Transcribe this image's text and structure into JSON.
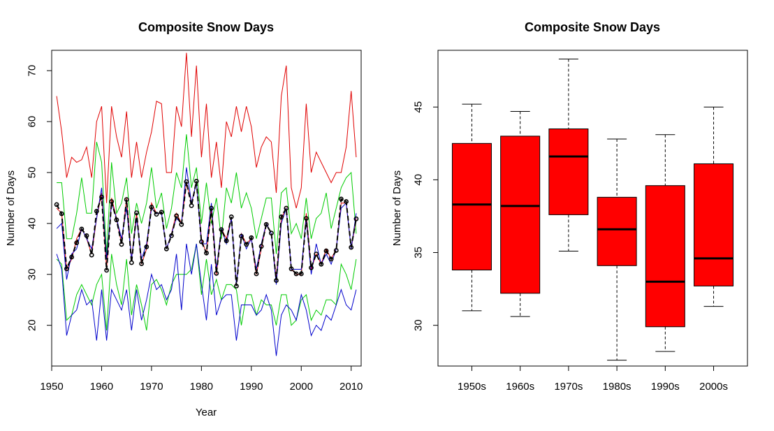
{
  "chart_data": [
    {
      "type": "line",
      "title": "Composite Snow Days",
      "xlabel": "Year",
      "ylabel": "Number of Days",
      "xlim": [
        1950,
        2012
      ],
      "ylim": [
        12,
        74
      ],
      "xticks": [
        "1950",
        "1960",
        "1970",
        "1980",
        "1990",
        "2000",
        "2010"
      ],
      "yticks": [
        "20",
        "30",
        "40",
        "50",
        "60",
        "70"
      ],
      "x": [
        1951,
        1952,
        1953,
        1954,
        1955,
        1956,
        1957,
        1958,
        1959,
        1960,
        1961,
        1962,
        1963,
        1964,
        1965,
        1966,
        1967,
        1968,
        1969,
        1970,
        1971,
        1972,
        1973,
        1974,
        1975,
        1976,
        1977,
        1978,
        1979,
        1980,
        1981,
        1982,
        1983,
        1984,
        1985,
        1986,
        1987,
        1988,
        1989,
        1990,
        1991,
        1992,
        1993,
        1994,
        1995,
        1996,
        1997,
        1998,
        1999,
        2000,
        2001,
        2002,
        2003,
        2004,
        2005,
        2006,
        2007,
        2008,
        2009,
        2010,
        2011
      ],
      "series": [
        {
          "color": "#e00000",
          "values": [
            65,
            58,
            49,
            53,
            52,
            52.5,
            55,
            49,
            60,
            63,
            44,
            63,
            57,
            53,
            62,
            49,
            56,
            49,
            54,
            58,
            64,
            63.5,
            50,
            50,
            63,
            59,
            73.5,
            57,
            71,
            53,
            63.5,
            49,
            56,
            47,
            60,
            57,
            63,
            58,
            63,
            59,
            51,
            55,
            57,
            56,
            46,
            65,
            71,
            47,
            43,
            47,
            63.5,
            50,
            54,
            52,
            50,
            48,
            50,
            50,
            55,
            66,
            53
          ]
        },
        {
          "color": "#00cc00",
          "values": [
            48,
            48,
            37,
            37,
            42,
            49,
            42,
            42,
            56,
            52,
            34,
            52,
            42,
            44,
            49,
            38,
            44,
            40,
            44,
            51,
            43,
            46,
            39,
            43,
            50,
            47,
            57.5,
            47,
            51,
            40,
            48,
            40,
            45,
            37,
            47,
            44,
            50,
            43,
            46,
            43,
            37,
            41,
            45,
            45,
            34,
            46,
            47,
            38,
            40,
            37,
            45,
            37,
            41,
            42,
            46,
            39,
            43,
            47,
            49,
            50,
            38
          ]
        },
        {
          "color": "#00cc00",
          "values": [
            33,
            32,
            21,
            22,
            26,
            28,
            26,
            24,
            28,
            30,
            19,
            34,
            28,
            24,
            33,
            22,
            28,
            24,
            19,
            28,
            29,
            27,
            24,
            28,
            30,
            30,
            30,
            31,
            36,
            26,
            33,
            26,
            29,
            25,
            28,
            28,
            27,
            20,
            26,
            26,
            22,
            25,
            24,
            24,
            20,
            26,
            26,
            20,
            21,
            25,
            26,
            21,
            23,
            22,
            25,
            25,
            24,
            32,
            30,
            27,
            33
          ]
        },
        {
          "color": "#0000cc",
          "values": [
            34,
            31,
            18,
            22,
            23,
            27,
            24,
            25,
            17,
            27,
            17,
            27,
            25,
            23,
            27,
            19,
            27,
            21,
            25,
            30,
            27,
            28,
            25,
            27,
            34,
            23,
            36,
            30,
            36,
            28,
            21,
            32,
            22,
            25,
            26,
            26,
            17,
            24,
            24,
            24,
            22,
            23,
            26,
            23,
            14,
            22,
            24,
            23,
            21,
            26,
            23,
            18,
            20,
            19,
            22,
            21,
            24,
            27,
            24,
            23,
            27
          ]
        },
        {
          "color": "#e00000",
          "values": [
            43,
            42,
            31,
            33,
            37,
            39,
            37,
            34,
            41,
            46,
            31,
            45,
            41,
            36,
            45,
            33,
            42,
            32,
            35,
            44,
            42,
            42,
            35,
            38,
            42,
            40,
            48,
            44,
            48,
            37,
            34,
            43,
            30,
            39,
            37,
            41,
            28,
            38,
            36,
            37,
            30,
            35,
            40,
            38,
            29,
            41,
            43,
            31,
            30,
            30,
            42,
            31,
            34,
            32,
            35,
            33,
            35,
            44,
            44,
            35,
            41
          ]
        },
        {
          "color": "#0000cc",
          "values": [
            39,
            40,
            29,
            34,
            35,
            39,
            37,
            35,
            41,
            47,
            33,
            44,
            41,
            37,
            43,
            33,
            41,
            33,
            36,
            43,
            42,
            42,
            35,
            38,
            41,
            40,
            51,
            44,
            48,
            36,
            36,
            44,
            31,
            39,
            36,
            41,
            28,
            38,
            35,
            37,
            31,
            36,
            40,
            38,
            28,
            40,
            43,
            31,
            31,
            31,
            41,
            30,
            36,
            32,
            34,
            32,
            35,
            43,
            44,
            35,
            42
          ]
        },
        {
          "color": "#000000",
          "dashed": true,
          "markers": true,
          "values": [
            43.7,
            41.9,
            31.1,
            33.4,
            36.2,
            38.9,
            37.6,
            33.8,
            42.4,
            45.2,
            30.8,
            44.3,
            40.7,
            35.9,
            44.7,
            32.3,
            42.1,
            32.1,
            35.4,
            43.2,
            41.8,
            42.2,
            35.0,
            37.6,
            41.5,
            39.8,
            48.2,
            43.5,
            48.3,
            36.4,
            34.2,
            43.0,
            30.2,
            38.8,
            36.6,
            41.3,
            27.7,
            37.5,
            35.9,
            37.2,
            30.1,
            35.5,
            39.8,
            38.1,
            28.8,
            41.3,
            43.0,
            31.1,
            30.1,
            30.1,
            41.0,
            31.3,
            34.0,
            32.0,
            34.6,
            33.0,
            34.7,
            44.8,
            44.3,
            35.3,
            40.9
          ]
        }
      ]
    },
    {
      "type": "box",
      "title": "Composite Snow Days",
      "xlabel": "",
      "ylabel": "Number of Days",
      "ylim": [
        27.2,
        48.9
      ],
      "yticks": [
        "30",
        "35",
        "40",
        "45"
      ],
      "categories": [
        "1950s",
        "1960s",
        "1970s",
        "1980s",
        "1990s",
        "2000s"
      ],
      "fill": "#ff0000",
      "boxes": [
        {
          "min": 31.0,
          "q1": 33.8,
          "median": 38.3,
          "q3": 42.5,
          "max": 45.2
        },
        {
          "min": 30.6,
          "q1": 32.2,
          "median": 38.2,
          "q3": 43.0,
          "max": 44.7
        },
        {
          "min": 35.1,
          "q1": 37.6,
          "median": 41.6,
          "q3": 43.5,
          "max": 48.3
        },
        {
          "min": 27.6,
          "q1": 34.1,
          "median": 36.6,
          "q3": 38.8,
          "max": 42.8
        },
        {
          "min": 28.2,
          "q1": 29.9,
          "median": 33.0,
          "q3": 39.6,
          "max": 43.1
        },
        {
          "min": 31.3,
          "q1": 32.7,
          "median": 34.6,
          "q3": 41.1,
          "max": 45.0
        }
      ]
    }
  ]
}
